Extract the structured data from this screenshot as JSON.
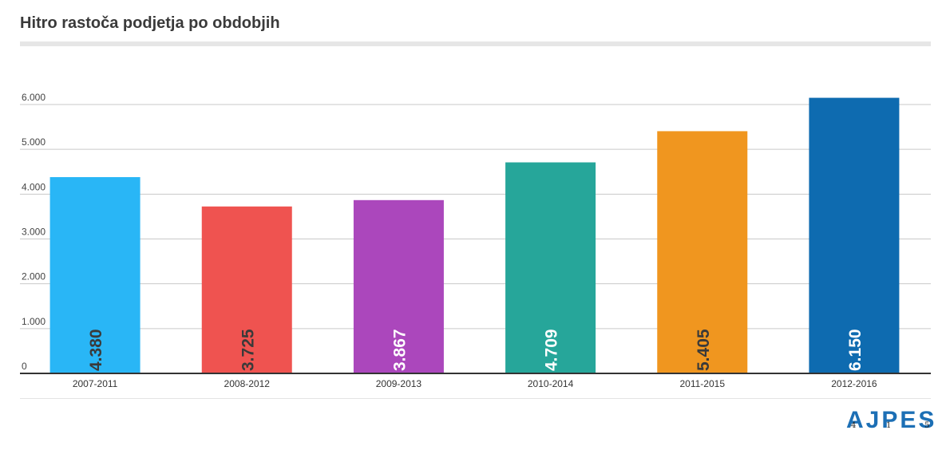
{
  "chart_data": {
    "type": "bar",
    "title": "Hitro rastoča podjetja po obdobjih",
    "categories": [
      "2007-2011",
      "2008-2012",
      "2009-2013",
      "2010-2014",
      "2011-2015",
      "2012-2016"
    ],
    "values": [
      4380,
      3725,
      3867,
      4709,
      5405,
      6150
    ],
    "value_labels": [
      "4.380",
      "3.725",
      "3.867",
      "4.709",
      "5.405",
      "6.150"
    ],
    "bar_colors": [
      "#29b6f6",
      "#ef5350",
      "#ab47bc",
      "#26a69a",
      "#f0961f",
      "#0e6bb0"
    ],
    "label_colors": [
      "#3a3a3a",
      "#3a3a3a",
      "#ffffff",
      "#ffffff",
      "#3a3a3a",
      "#ffffff"
    ],
    "yticks": [
      0,
      1000,
      2000,
      3000,
      4000,
      5000,
      6000
    ],
    "ytick_labels": [
      "0",
      "1.000",
      "2.000",
      "3.000",
      "4.000",
      "5.000",
      "6.000"
    ],
    "ylim": [
      0,
      6000
    ],
    "xlabel": "",
    "ylabel": "",
    "grid": true,
    "legend": "none"
  },
  "logo": {
    "text": "AJPES",
    "marks": [
      "4",
      "1",
      "5"
    ],
    "color": "#1c6fb5"
  }
}
